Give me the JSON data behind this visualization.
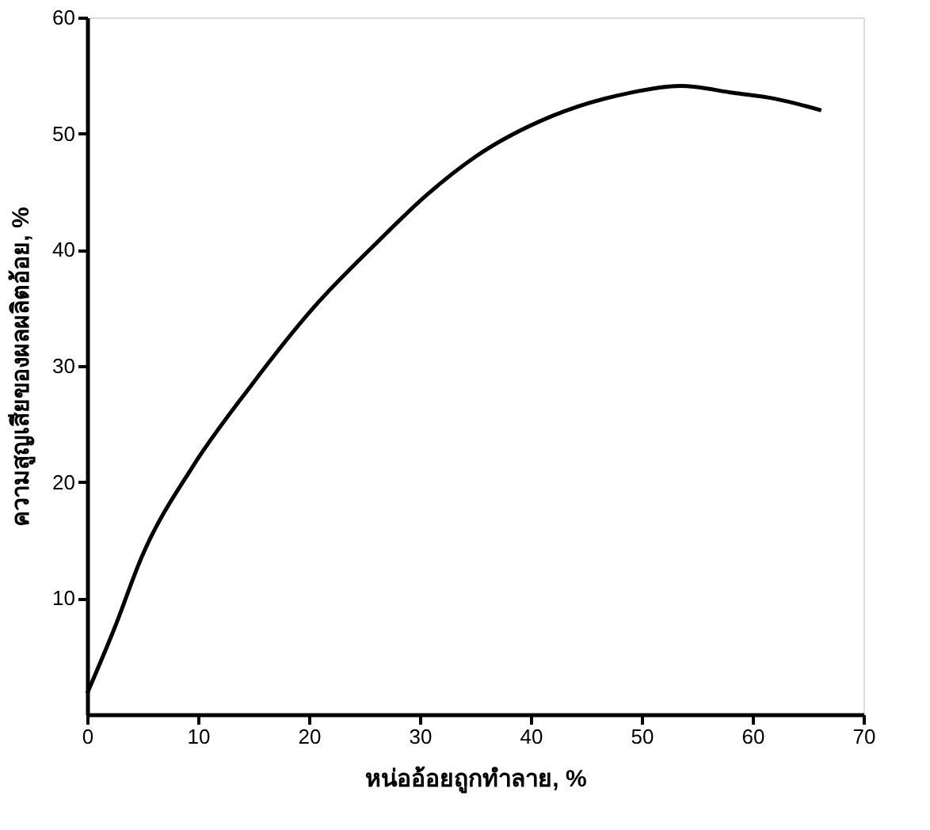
{
  "chart_data": {
    "type": "line",
    "xlabel": "หน่ออ้อยถูกทำลาย, %",
    "ylabel": "ความสูญเสียของผลผลิตอ้อย, %",
    "x": [
      0,
      2.5,
      4.9,
      9.5,
      14.7,
      20.4,
      26,
      30.6,
      35,
      41.9,
      48.9,
      53.5,
      58.3,
      62,
      66.2
    ],
    "series": [
      {
        "color": "#000000",
        "values": [
          1.8,
          7.5,
          13.5,
          21.3,
          28.2,
          35,
          40.5,
          44.7,
          48,
          51.5,
          53.5,
          54.1,
          53.5,
          53,
          52
        ]
      }
    ],
    "xlim": [
      0,
      70
    ],
    "ylim": [
      0,
      60
    ],
    "xticks": [
      0,
      10,
      20,
      30,
      40,
      50,
      60,
      70
    ],
    "yticks": [
      10,
      20,
      30,
      40,
      50,
      60
    ],
    "grid": false,
    "legend": false,
    "marker": "none",
    "line_style": "solid"
  }
}
